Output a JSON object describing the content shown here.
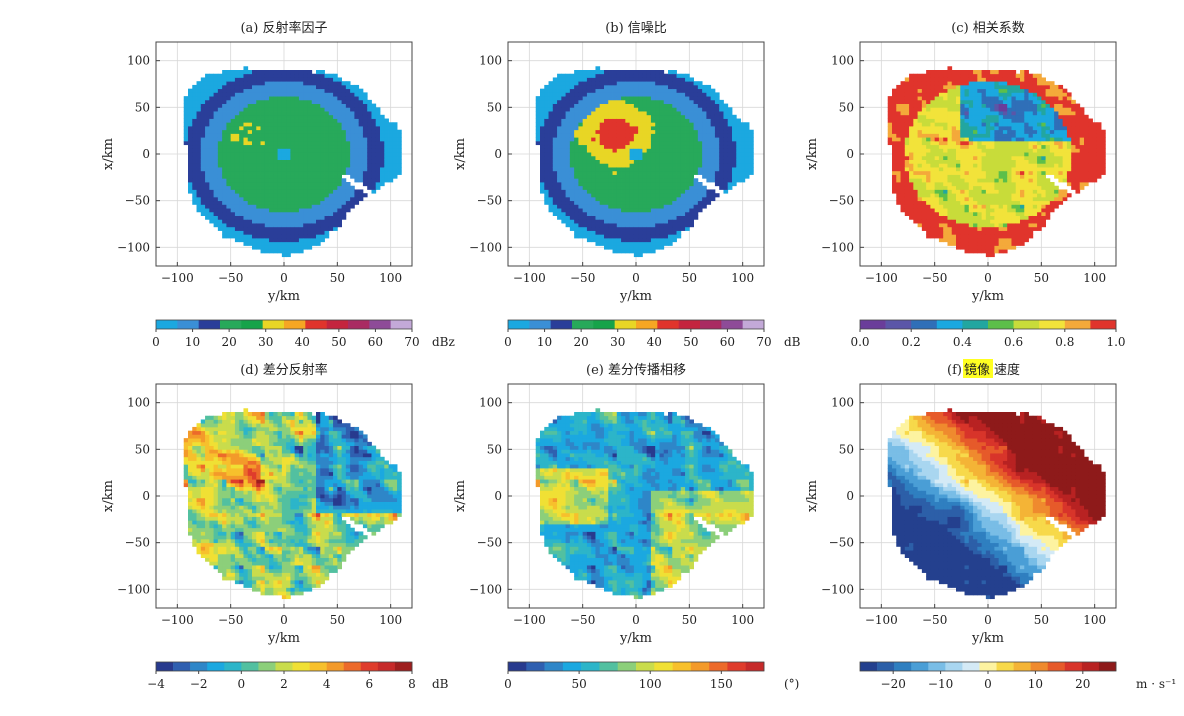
{
  "chart_data": [
    {
      "type": "heatmap",
      "panel": "a",
      "title": "(a) 反射率因子",
      "xlabel": "y/km",
      "ylabel": "x/km",
      "xlim": [
        -120,
        120
      ],
      "ylim": [
        -120,
        120
      ],
      "xticks": [
        -100,
        -50,
        0,
        50,
        100
      ],
      "yticks": [
        100,
        50,
        0,
        -50,
        -100
      ],
      "field": "reflectivity",
      "echo_radius_km": 100,
      "grid": true,
      "colorbar": {
        "unit": "dBz",
        "range": [
          0,
          70
        ],
        "ticks": [
          "0",
          "10",
          "20",
          "30",
          "40",
          "50",
          "60",
          "70"
        ],
        "colors": [
          "#1ba8e0",
          "#3a8fd6",
          "#2a3e99",
          "#27a95a",
          "#16a34a",
          "#e8d625",
          "#f6a623",
          "#e0342c",
          "#c4243e",
          "#a92b62",
          "#8e4b98",
          "#c3a9d8"
        ]
      }
    },
    {
      "type": "heatmap",
      "panel": "b",
      "title": "(b) 信噪比",
      "xlabel": "y/km",
      "ylabel": "x/km",
      "xlim": [
        -120,
        120
      ],
      "ylim": [
        -120,
        120
      ],
      "xticks": [
        -100,
        -50,
        0,
        50,
        100
      ],
      "yticks": [
        100,
        50,
        0,
        -50,
        -100
      ],
      "field": "snr",
      "echo_radius_km": 100,
      "grid": true,
      "colorbar": {
        "unit": "dB",
        "range": [
          0,
          70
        ],
        "ticks": [
          "0",
          "10",
          "20",
          "30",
          "40",
          "50",
          "60",
          "70"
        ],
        "colors": [
          "#1ba8e0",
          "#3a8fd6",
          "#2a3e99",
          "#27a95a",
          "#16a34a",
          "#e8d625",
          "#f6a623",
          "#e0342c",
          "#c4243e",
          "#a92b62",
          "#8e4b98",
          "#c3a9d8"
        ]
      }
    },
    {
      "type": "heatmap",
      "panel": "c",
      "title": "(c) 相关系数",
      "xlabel": "y/km",
      "ylabel": "x/km",
      "xlim": [
        -120,
        120
      ],
      "ylim": [
        -120,
        120
      ],
      "xticks": [
        -100,
        -50,
        0,
        50,
        100
      ],
      "yticks": [
        100,
        50,
        0,
        -50,
        -100
      ],
      "field": "correlation",
      "echo_radius_km": 100,
      "grid": true,
      "colorbar": {
        "unit": "",
        "range": [
          0,
          1
        ],
        "ticks": [
          "0.0",
          "0.2",
          "0.4",
          "0.6",
          "0.8",
          "1.0"
        ],
        "colors": [
          "#6a3d9a",
          "#5b56a8",
          "#2f6fb8",
          "#1ba8e0",
          "#22a6a0",
          "#5cbf4a",
          "#c8dc3a",
          "#f2e33a",
          "#f4a93a",
          "#e0342c"
        ]
      }
    },
    {
      "type": "heatmap",
      "panel": "d",
      "title": "(d) 差分反射率",
      "xlabel": "y/km",
      "ylabel": "x/km",
      "xlim": [
        -120,
        120
      ],
      "ylim": [
        -120,
        120
      ],
      "xticks": [
        -100,
        -50,
        0,
        50,
        100
      ],
      "yticks": [
        100,
        50,
        0,
        -50,
        -100
      ],
      "field": "zdr",
      "echo_radius_km": 100,
      "grid": true,
      "colorbar": {
        "unit": "dB",
        "range": [
          -4,
          8
        ],
        "ticks": [
          "−4",
          "−2",
          "0",
          "2",
          "4",
          "6",
          "8"
        ],
        "colors": [
          "#283a8e",
          "#2f5fb0",
          "#2e86c8",
          "#1ba8e0",
          "#2cb5c9",
          "#52c0a0",
          "#8ccf7a",
          "#c9dc4c",
          "#f0e034",
          "#f7c02c",
          "#f39a2a",
          "#ec6a2a",
          "#df3c2c",
          "#c62a2a",
          "#9e1e1e"
        ]
      }
    },
    {
      "type": "heatmap",
      "panel": "e",
      "title": "(e) 差分传播相移",
      "xlabel": "y/km",
      "ylabel": "x/km",
      "xlim": [
        -120,
        120
      ],
      "ylim": [
        -120,
        120
      ],
      "xticks": [
        -100,
        -50,
        0,
        50,
        100
      ],
      "yticks": [
        100,
        50,
        0,
        -50,
        -100
      ],
      "field": "phidp",
      "echo_radius_km": 100,
      "grid": true,
      "colorbar": {
        "unit": "(°)",
        "range": [
          0,
          180
        ],
        "ticks": [
          "0",
          "50",
          "100",
          "150"
        ],
        "colors": [
          "#283a8e",
          "#2f5fb0",
          "#2e86c8",
          "#1ba8e0",
          "#2cb5c9",
          "#52c0a0",
          "#8ccf7a",
          "#c9dc4c",
          "#f0e034",
          "#f7c02c",
          "#f39a2a",
          "#ec6a2a",
          "#df3c2c",
          "#c62a2a"
        ]
      }
    },
    {
      "type": "heatmap",
      "panel": "f",
      "title_prefix": "(f)",
      "title_highlight": "镜像",
      "title_suffix": "速度",
      "xlabel": "y/km",
      "ylabel": "x/km",
      "xlim": [
        -120,
        120
      ],
      "ylim": [
        -120,
        120
      ],
      "xticks": [
        -100,
        -50,
        0,
        50,
        100
      ],
      "yticks": [
        100,
        50,
        0,
        -50,
        -100
      ],
      "field": "velocity",
      "echo_radius_km": 100,
      "grid": true,
      "colorbar": {
        "unit": "m · s⁻¹",
        "range": [
          -27,
          27
        ],
        "ticks": [
          "−20",
          "−10",
          "0",
          "10",
          "20"
        ],
        "colors": [
          "#24408e",
          "#2c5fa8",
          "#2f7fc0",
          "#4a9ed6",
          "#79bde6",
          "#a9d6f0",
          "#d4eaf6",
          "#fdf3a0",
          "#f7d94a",
          "#f4b436",
          "#ef8a2e",
          "#e65a2a",
          "#d8342a",
          "#b82222",
          "#8e1a1a"
        ]
      }
    }
  ]
}
